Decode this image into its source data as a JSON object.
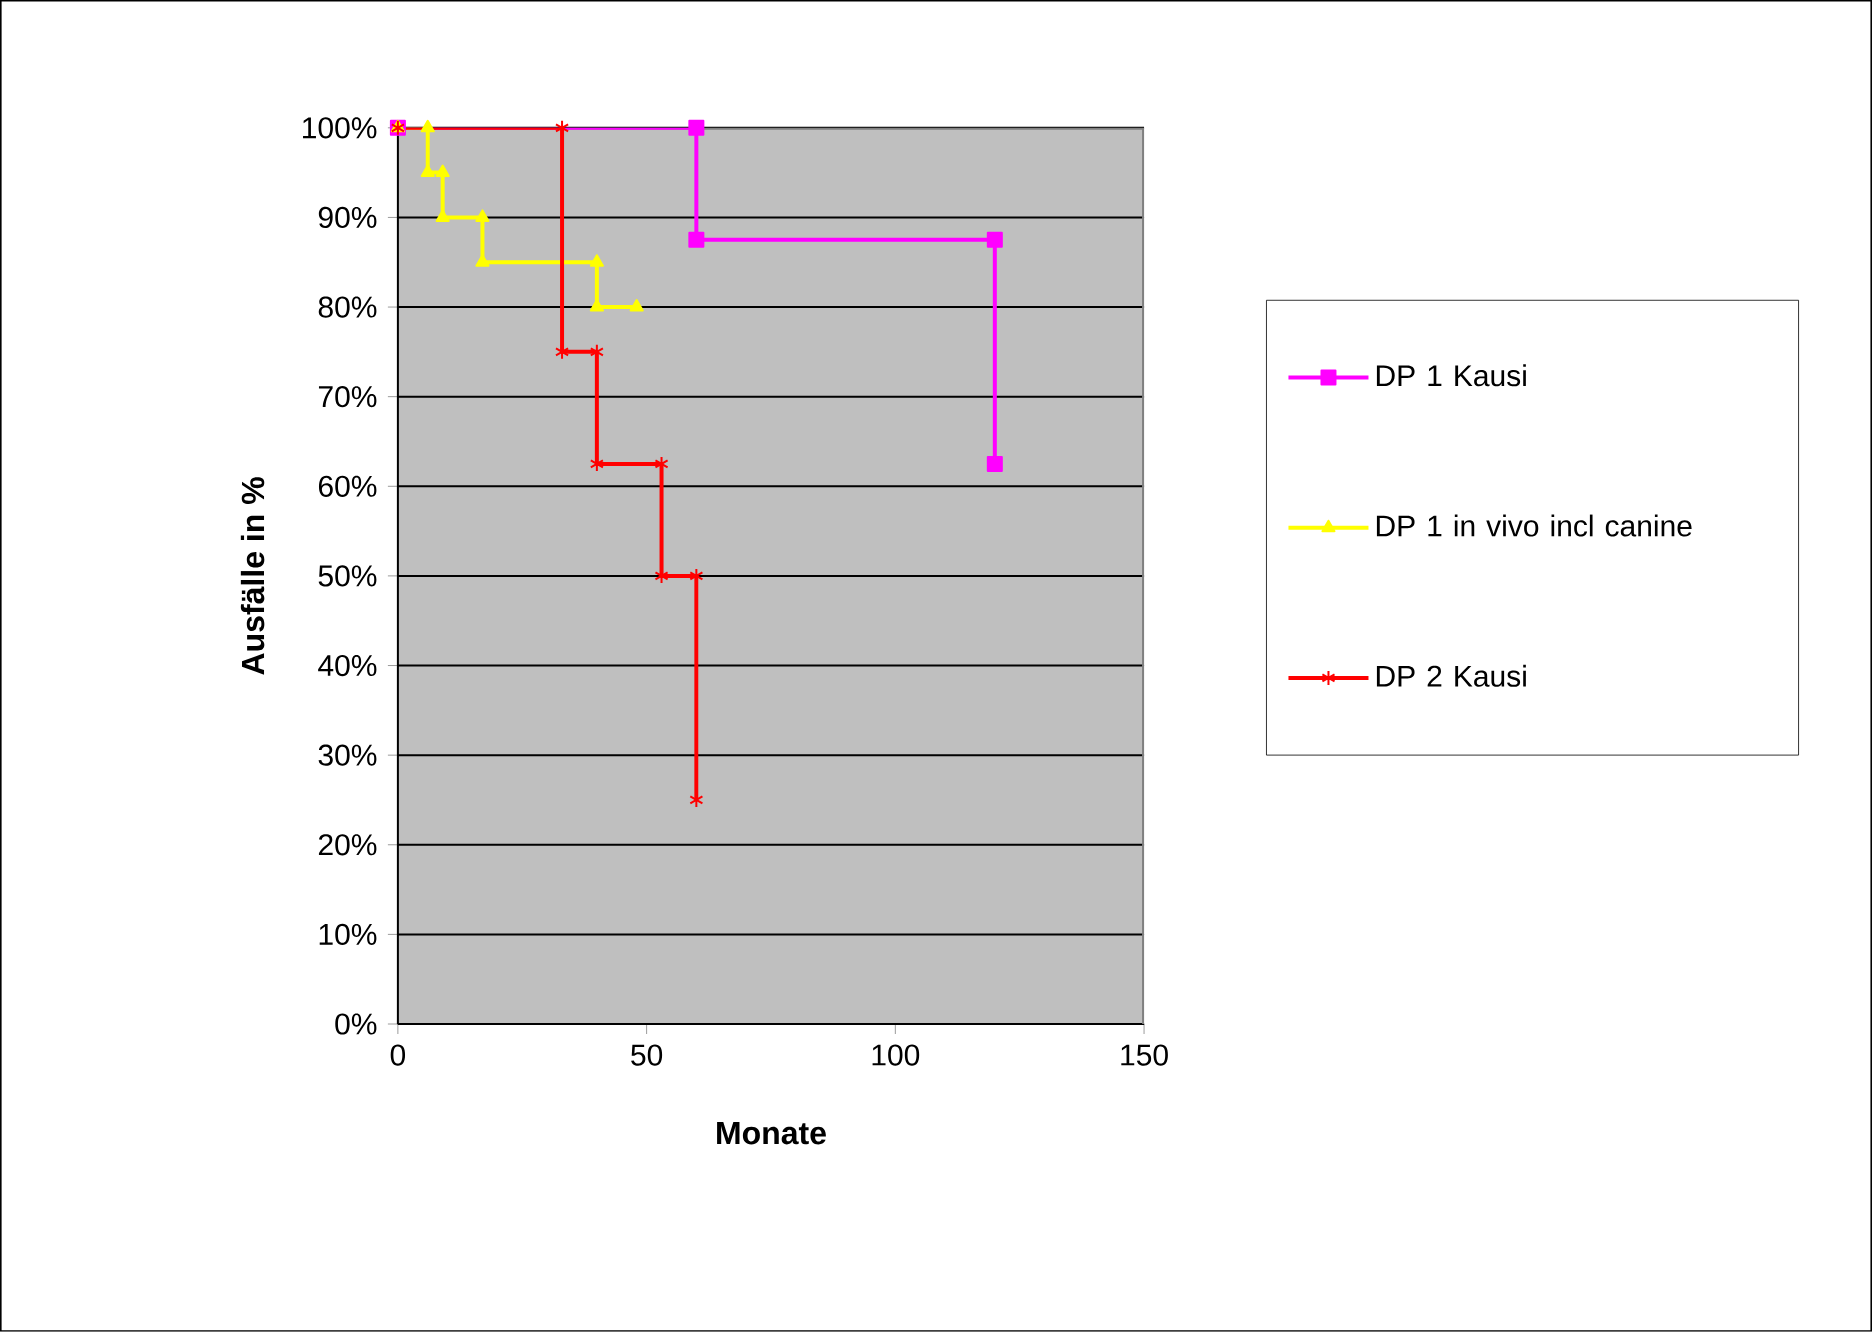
{
  "chart_data": {
    "type": "line",
    "xlabel": "Monate",
    "ylabel": "Ausfälle in %",
    "xlim": [
      0,
      150
    ],
    "xticks": [
      0,
      50,
      100,
      150
    ],
    "ylim": [
      0,
      100
    ],
    "yticks": [
      {
        "value": 0,
        "label": "0%"
      },
      {
        "value": 10,
        "label": "10%"
      },
      {
        "value": 20,
        "label": "20%"
      },
      {
        "value": 30,
        "label": "30%"
      },
      {
        "value": 40,
        "label": "40%"
      },
      {
        "value": 50,
        "label": "50%"
      },
      {
        "value": 60,
        "label": "60%"
      },
      {
        "value": 70,
        "label": "70%"
      },
      {
        "value": 80,
        "label": "80%"
      },
      {
        "value": 90,
        "label": "90%"
      },
      {
        "value": 100,
        "label": "100%"
      }
    ],
    "grid": "y",
    "legend": "right",
    "series": [
      {
        "name": "DP 1 Kausi",
        "color": "#ff00ff",
        "marker": "square",
        "x": [
          0,
          60,
          60,
          120,
          120
        ],
        "values": [
          100,
          100,
          87.5,
          87.5,
          62.5
        ]
      },
      {
        "name": "DP 1 in vivo incl canine",
        "color": "#ffff00",
        "marker": "triangle",
        "x": [
          0,
          6,
          6,
          9,
          9,
          17,
          17,
          40,
          40,
          48
        ],
        "values": [
          100,
          100,
          95,
          95,
          90,
          90,
          85,
          85,
          80,
          80
        ]
      },
      {
        "name": "DP 2 Kausi",
        "color": "#ff0000",
        "marker": "cross",
        "x": [
          0,
          33,
          33,
          40,
          40,
          53,
          53,
          60,
          60
        ],
        "values": [
          100,
          100,
          75,
          75,
          62.5,
          62.5,
          50,
          50,
          25
        ]
      }
    ]
  }
}
